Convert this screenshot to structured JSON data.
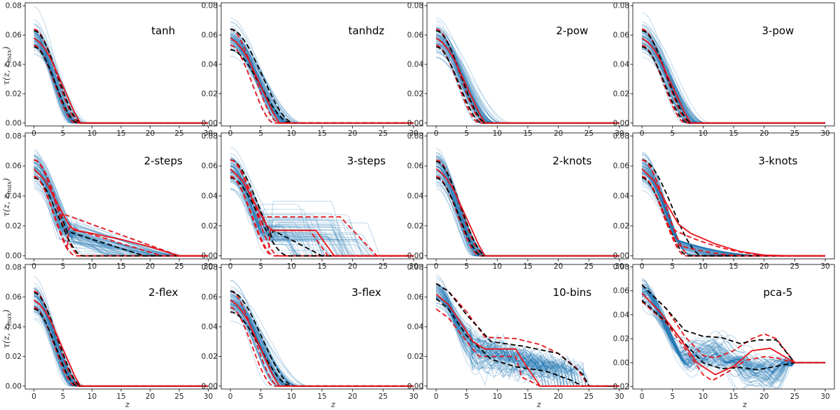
{
  "figure": {
    "ylabel": "τ(z, z_max)",
    "ylabel_main": "τ(z, z",
    "ylabel_sub": "max",
    "ylabel_close": ")",
    "xlabel": "z"
  },
  "colors": {
    "samples": "#1f77b4",
    "red": "#e8141c",
    "black": "#000000",
    "axes": "#000000"
  },
  "chart_data": [
    {
      "type": "line",
      "title": "tanh",
      "shape": "tanh",
      "x_ticks": [
        0,
        5,
        10,
        15,
        20,
        25,
        30
      ],
      "y_ticks": [
        "0.00",
        "0.02",
        "0.04",
        "0.06",
        "0.08"
      ],
      "xlim": [
        -1.5,
        31.5
      ],
      "ylim": [
        -0.002,
        0.082
      ],
      "series": [
        {
          "name": "red median",
          "x": [
            0,
            1,
            2,
            3,
            4,
            5,
            6,
            7,
            8,
            30
          ],
          "y": [
            0.058,
            0.055,
            0.05,
            0.043,
            0.034,
            0.025,
            0.016,
            0.007,
            0.0,
            0.0
          ]
        }
      ]
    },
    {
      "type": "line",
      "title": "tanhdz",
      "shape": "tanhdz",
      "x_ticks": [
        0,
        5,
        10,
        15,
        20,
        25,
        30
      ],
      "y_ticks": [
        "0.00",
        "0.02",
        "0.04",
        "0.06",
        "0.08"
      ],
      "xlim": [
        -1.5,
        31.5
      ],
      "ylim": [
        -0.002,
        0.082
      ],
      "series": [
        {
          "name": "red median",
          "x": [
            0,
            1,
            2,
            3,
            4,
            5,
            6,
            7,
            8,
            30
          ],
          "y": [
            0.058,
            0.055,
            0.05,
            0.043,
            0.034,
            0.025,
            0.016,
            0.007,
            0.0,
            0.0
          ]
        }
      ]
    },
    {
      "type": "line",
      "title": "2-pow",
      "shape": "pow",
      "x_ticks": [
        0,
        5,
        10,
        15,
        20,
        25,
        30
      ],
      "y_ticks": [
        "0.00",
        "0.02",
        "0.04",
        "0.06",
        "0.08"
      ],
      "xlim": [
        -1.5,
        31.5
      ],
      "ylim": [
        -0.002,
        0.082
      ],
      "series": [
        {
          "name": "red median",
          "x": [
            0,
            1,
            2,
            3,
            4,
            5,
            6,
            7,
            8,
            30
          ],
          "y": [
            0.058,
            0.055,
            0.05,
            0.043,
            0.034,
            0.025,
            0.016,
            0.007,
            0.0,
            0.0
          ]
        }
      ]
    },
    {
      "type": "line",
      "title": "3-pow",
      "shape": "pow",
      "x_ticks": [
        0,
        5,
        10,
        15,
        20,
        25,
        30
      ],
      "y_ticks": [
        "0.00",
        "0.02",
        "0.04",
        "0.06",
        "0.08"
      ],
      "xlim": [
        -1.5,
        31.5
      ],
      "ylim": [
        -0.002,
        0.082
      ],
      "series": [
        {
          "name": "red median",
          "x": [
            0,
            1,
            2,
            3,
            4,
            5,
            6,
            7,
            8,
            30
          ],
          "y": [
            0.058,
            0.055,
            0.05,
            0.043,
            0.034,
            0.025,
            0.016,
            0.007,
            0.0,
            0.0
          ]
        }
      ]
    },
    {
      "type": "line",
      "title": "2-steps",
      "shape": "steps2",
      "x_ticks": [
        0,
        5,
        10,
        15,
        20,
        25,
        30
      ],
      "y_ticks": [
        "0.00",
        "0.02",
        "0.04",
        "0.06",
        "0.08"
      ],
      "xlim": [
        -1.5,
        31.5
      ],
      "ylim": [
        -0.002,
        0.082
      ],
      "series": [
        {
          "name": "red median",
          "x": [
            0,
            2,
            4,
            6,
            7,
            10,
            15,
            20,
            25,
            30
          ],
          "y": [
            0.058,
            0.05,
            0.035,
            0.021,
            0.017,
            0.015,
            0.011,
            0.006,
            0.0,
            0.0
          ]
        }
      ]
    },
    {
      "type": "line",
      "title": "3-steps",
      "shape": "steps3",
      "x_ticks": [
        0,
        5,
        10,
        15,
        20,
        25,
        30
      ],
      "y_ticks": [
        "0.00",
        "0.02",
        "0.04",
        "0.06",
        "0.08"
      ],
      "xlim": [
        -1.5,
        31.5
      ],
      "ylim": [
        -0.002,
        0.082
      ],
      "series": [
        {
          "name": "red median",
          "x": [
            0,
            2,
            4,
            6,
            7,
            14,
            17,
            30
          ],
          "y": [
            0.058,
            0.05,
            0.035,
            0.02,
            0.017,
            0.017,
            0.0,
            0.0
          ]
        }
      ]
    },
    {
      "type": "line",
      "title": "2-knots",
      "shape": "knots2",
      "x_ticks": [
        0,
        5,
        10,
        15,
        20,
        25,
        30
      ],
      "y_ticks": [
        "0.00",
        "0.02",
        "0.04",
        "0.06",
        "0.08"
      ],
      "xlim": [
        -1.5,
        31.5
      ],
      "ylim": [
        -0.002,
        0.082
      ],
      "series": [
        {
          "name": "red median",
          "x": [
            0,
            1,
            2,
            3,
            4,
            5,
            6,
            7,
            8,
            30
          ],
          "y": [
            0.058,
            0.055,
            0.05,
            0.043,
            0.034,
            0.025,
            0.016,
            0.007,
            0.0,
            0.0
          ]
        }
      ]
    },
    {
      "type": "line",
      "title": "3-knots",
      "shape": "knots3",
      "x_ticks": [
        0,
        5,
        10,
        15,
        20,
        25,
        30
      ],
      "y_ticks": [
        "0.00",
        "0.02",
        "0.04",
        "0.06",
        "0.08"
      ],
      "xlim": [
        -1.5,
        31.5
      ],
      "ylim": [
        -0.002,
        0.082
      ],
      "series": [
        {
          "name": "red median",
          "x": [
            0,
            2,
            4,
            6,
            8,
            12,
            16,
            20,
            25,
            30
          ],
          "y": [
            0.058,
            0.05,
            0.035,
            0.021,
            0.015,
            0.008,
            0.003,
            0.0005,
            0.0,
            0.0
          ]
        }
      ]
    },
    {
      "type": "line",
      "title": "2-flex",
      "shape": "flex",
      "x_ticks": [
        0,
        5,
        10,
        15,
        20,
        25,
        30
      ],
      "y_ticks": [
        "0.00",
        "0.02",
        "0.04",
        "0.06",
        "0.08"
      ],
      "xlim": [
        -1.5,
        31.5
      ],
      "ylim": [
        -0.002,
        0.082
      ],
      "series": [
        {
          "name": "red median",
          "x": [
            0,
            1,
            2,
            3,
            4,
            5,
            6,
            7,
            8,
            30
          ],
          "y": [
            0.058,
            0.055,
            0.05,
            0.043,
            0.034,
            0.025,
            0.016,
            0.007,
            0.0,
            0.0
          ]
        }
      ]
    },
    {
      "type": "line",
      "title": "3-flex",
      "shape": "flex3",
      "x_ticks": [
        0,
        5,
        10,
        15,
        20,
        25,
        30
      ],
      "y_ticks": [
        "0.00",
        "0.02",
        "0.04",
        "0.06",
        "0.08"
      ],
      "xlim": [
        -1.5,
        31.5
      ],
      "ylim": [
        -0.002,
        0.082
      ],
      "series": [
        {
          "name": "red median",
          "x": [
            0,
            1,
            2,
            3,
            4,
            5,
            6,
            7,
            8,
            30
          ],
          "y": [
            0.058,
            0.055,
            0.05,
            0.043,
            0.034,
            0.025,
            0.016,
            0.007,
            0.0,
            0.0
          ]
        }
      ]
    },
    {
      "type": "line",
      "title": "10-bins",
      "shape": "bins10",
      "x_ticks": [
        0,
        5,
        10,
        15,
        20,
        25,
        30
      ],
      "y_ticks": [
        "0.00",
        "0.02",
        "0.04",
        "0.06",
        "0.08"
      ],
      "xlim": [
        -1.5,
        31.5
      ],
      "ylim": [
        -0.002,
        0.082
      ],
      "series": [
        {
          "name": "red median",
          "x": [
            0,
            2,
            4,
            6,
            8,
            13,
            15,
            17,
            30
          ],
          "y": [
            0.062,
            0.055,
            0.043,
            0.03,
            0.025,
            0.025,
            0.012,
            0.0,
            0.0
          ]
        }
      ]
    },
    {
      "type": "line",
      "title": "pca-5",
      "shape": "pca5",
      "x_ticks": [
        0,
        5,
        10,
        15,
        20,
        25,
        30
      ],
      "y_ticks": [
        "−0.02",
        "0.00",
        "0.02",
        "0.04",
        "0.06",
        "0.08"
      ],
      "xlim": [
        -1.5,
        31.5
      ],
      "ylim": [
        -0.022,
        0.082
      ],
      "series": [
        {
          "name": "red median",
          "x": [
            0,
            3,
            6,
            9,
            12,
            15,
            18,
            21,
            25,
            30
          ],
          "y": [
            0.058,
            0.042,
            0.022,
            0.0,
            -0.01,
            -0.003,
            0.01,
            0.012,
            0.0,
            0.0
          ]
        }
      ]
    }
  ]
}
